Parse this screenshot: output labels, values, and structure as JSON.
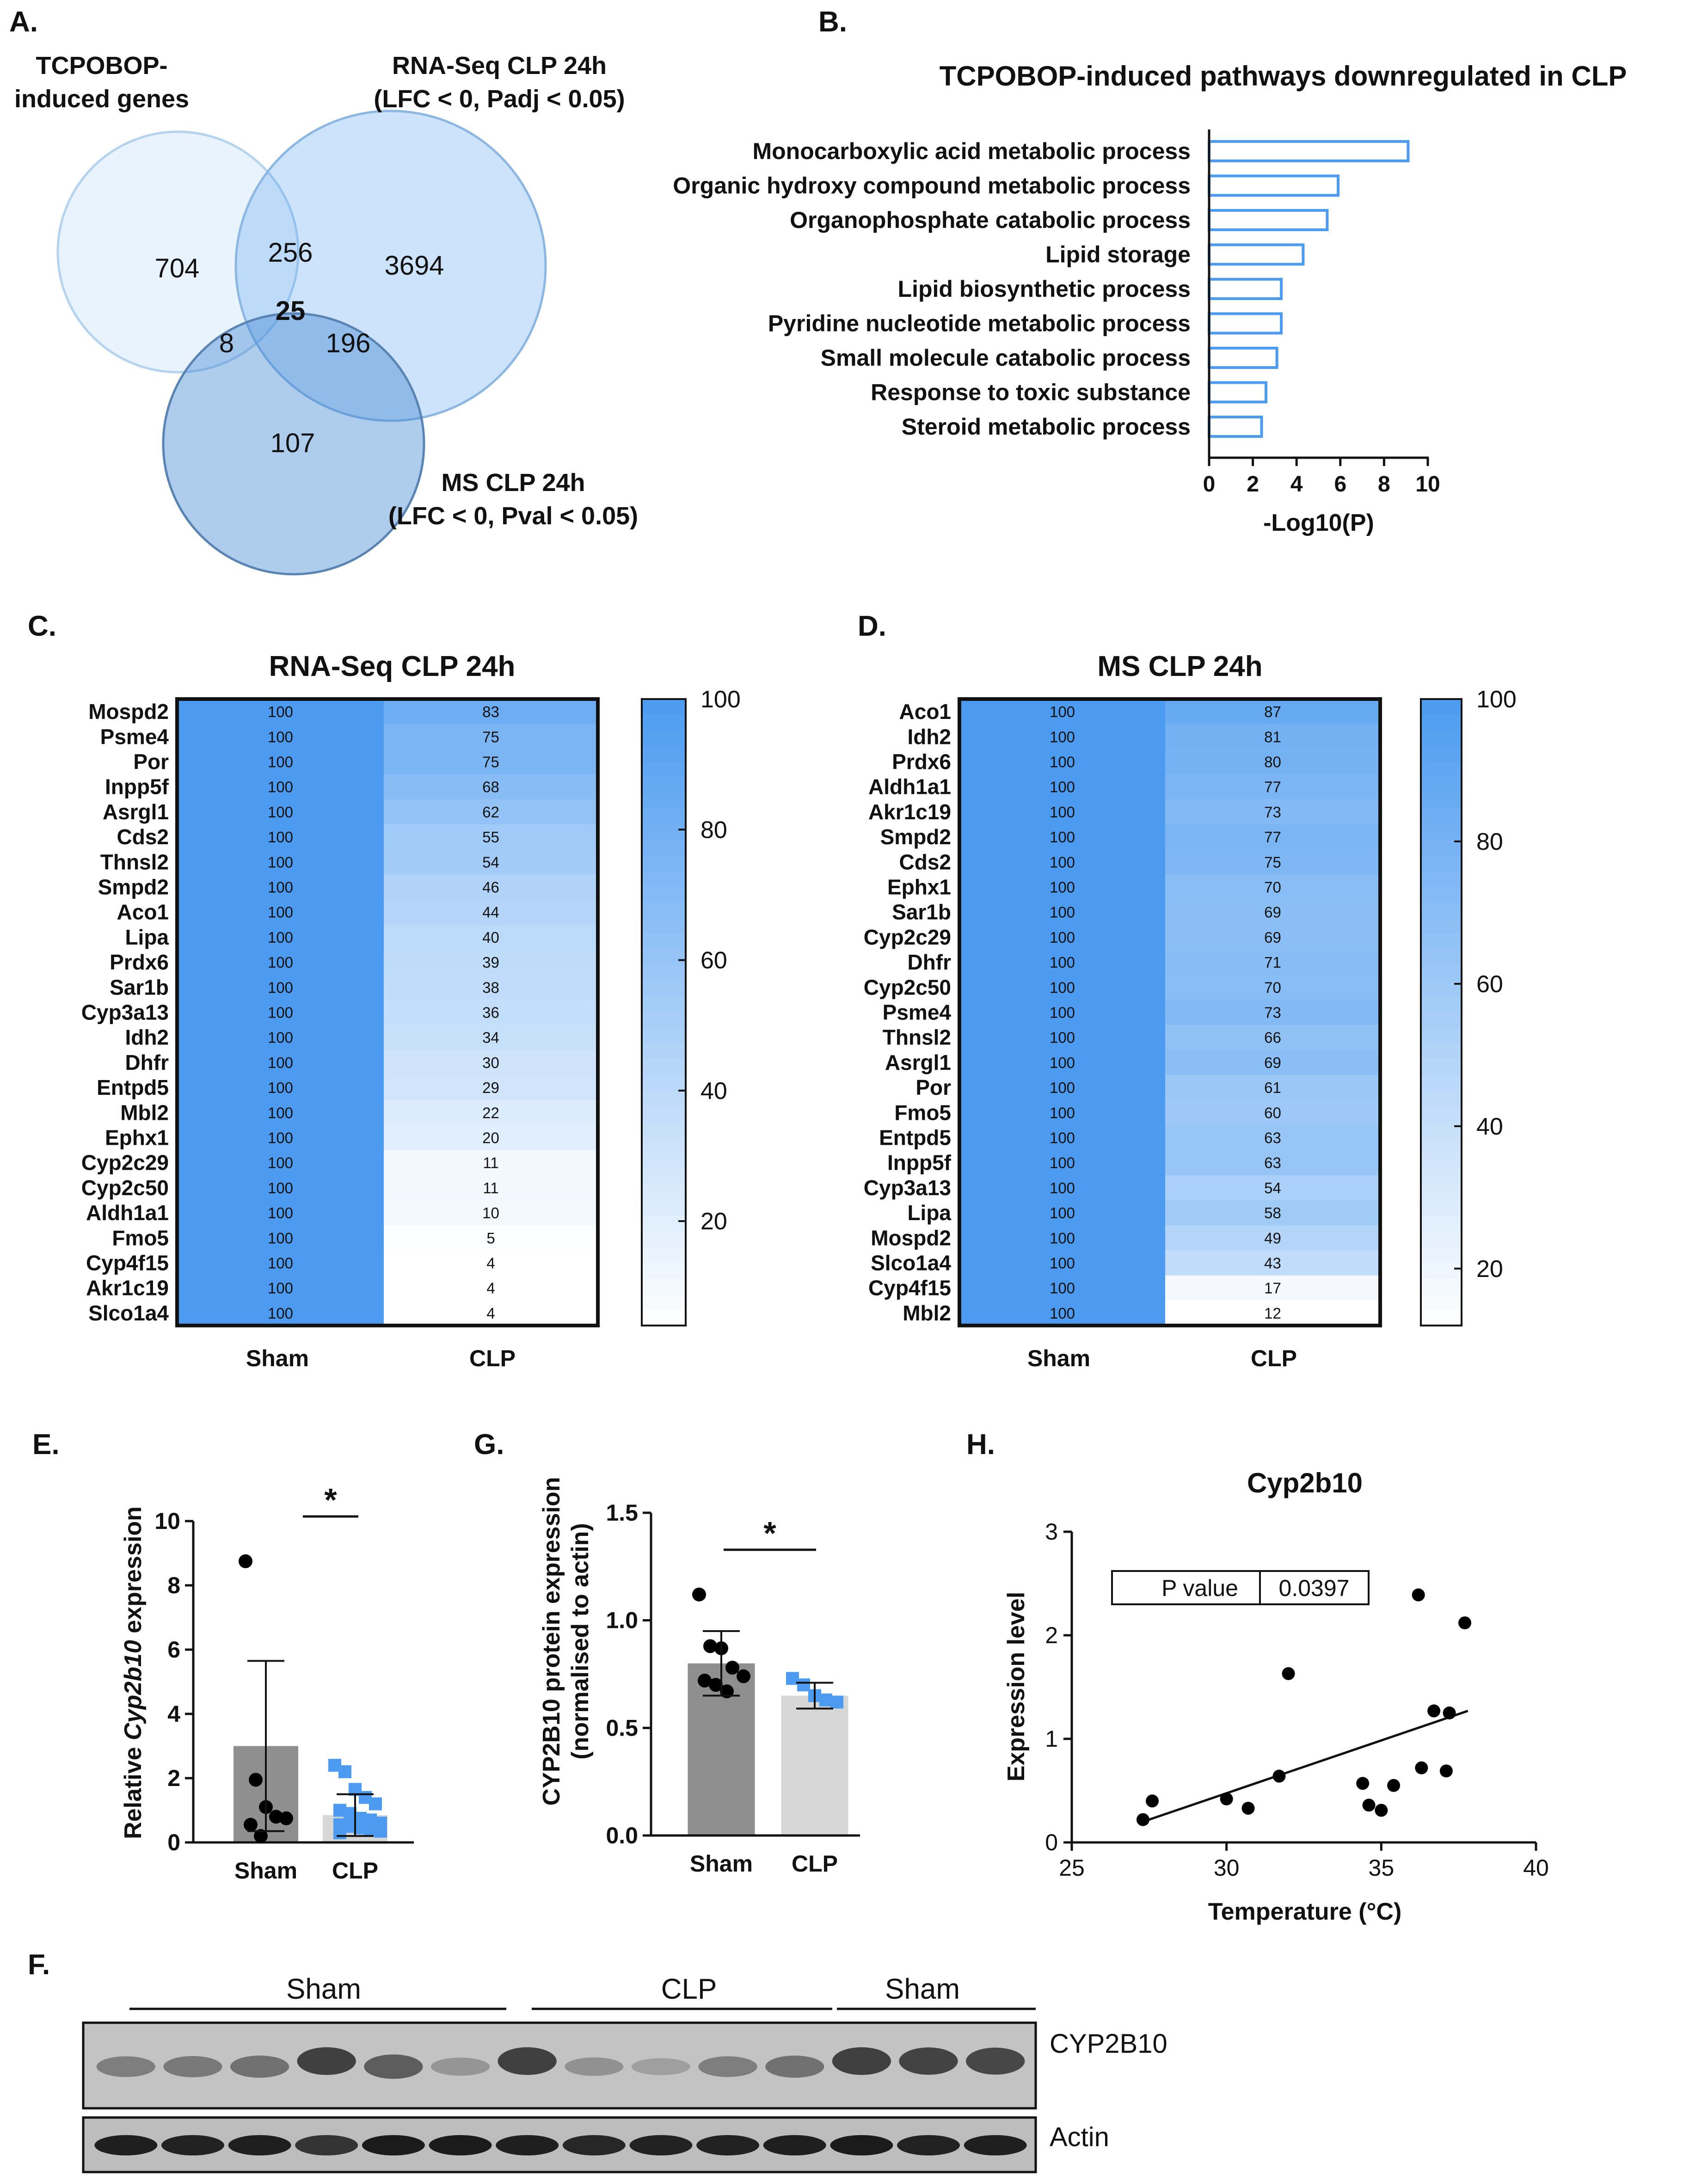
{
  "panel_letters": {
    "a": "A.",
    "b": "B.",
    "c": "C.",
    "d": "D.",
    "e": "E.",
    "g": "G.",
    "h": "H.",
    "f": "F."
  },
  "venn": {
    "set1_label": [
      "TCPOBOP-",
      "induced genes"
    ],
    "set2_label": [
      "RNA-Seq CLP 24h",
      "(LFC < 0, Padj < 0.05)"
    ],
    "set3_label": [
      "MS CLP 24h",
      "(LFC < 0, Pval < 0.05)"
    ],
    "counts": {
      "only1": "704",
      "only2": "3694",
      "only3": "107",
      "s12": "256",
      "s13": "8",
      "s23": "196",
      "all": "25"
    }
  },
  "heatmap_common": {
    "sham_label": "Sham",
    "clp_label": "CLP",
    "color_low": "#ffffff",
    "color_high": "#4c9bf0"
  },
  "chart_data": [
    {
      "id": "B",
      "type": "bar",
      "orientation": "horizontal",
      "title": "TCPOBOP-induced pathways downregulated in CLP",
      "xlabel": "-Log10(P)",
      "xlim": [
        0,
        10
      ],
      "xticks": [
        0,
        2,
        4,
        6,
        8,
        10
      ],
      "categories": [
        "Monocarboxylic acid metabolic process",
        "Organic hydroxy compound metabolic process",
        "Organophosphate catabolic process",
        "Lipid storage",
        "Lipid biosynthetic process",
        "Pyridine nucleotide metabolic process",
        "Small molecule catabolic process",
        "Response to toxic substance",
        "Steroid metabolic process"
      ],
      "values": [
        9.1,
        5.9,
        5.4,
        4.3,
        3.3,
        3.3,
        3.1,
        2.6,
        2.4
      ],
      "color": "#4c9bf0"
    },
    {
      "id": "C",
      "type": "heatmap",
      "title": "RNA-Seq CLP 24h",
      "columns": [
        "Sham",
        "CLP"
      ],
      "rows": [
        "Mospd2",
        "Psme4",
        "Por",
        "Inpp5f",
        "Asrgl1",
        "Cds2",
        "Thnsl2",
        "Smpd2",
        "Aco1",
        "Lipa",
        "Prdx6",
        "Sar1b",
        "Cyp3a13",
        "Idh2",
        "Dhfr",
        "Entpd5",
        "Mbl2",
        "Ephx1",
        "Cyp2c29",
        "Cyp2c50",
        "Aldh1a1",
        "Fmo5",
        "Cyp4f15",
        "Akr1c19",
        "Slco1a4"
      ],
      "sham": [
        100,
        100,
        100,
        100,
        100,
        100,
        100,
        100,
        100,
        100,
        100,
        100,
        100,
        100,
        100,
        100,
        100,
        100,
        100,
        100,
        100,
        100,
        100,
        100,
        100
      ],
      "clp": [
        83,
        75,
        75,
        68,
        62,
        55,
        54,
        46,
        44,
        40,
        39,
        38,
        36,
        34,
        30,
        29,
        22,
        20,
        11,
        11,
        10,
        5,
        4,
        4,
        4
      ],
      "scale_min": 4,
      "scale_max": 100,
      "colorbar_ticks": [
        20,
        40,
        60,
        80,
        100
      ]
    },
    {
      "id": "D",
      "type": "heatmap",
      "title": "MS CLP 24h",
      "columns": [
        "Sham",
        "CLP"
      ],
      "rows": [
        "Aco1",
        "Idh2",
        "Prdx6",
        "Aldh1a1",
        "Akr1c19",
        "Smpd2",
        "Cds2",
        "Ephx1",
        "Sar1b",
        "Cyp2c29",
        "Dhfr",
        "Cyp2c50",
        "Psme4",
        "Thnsl2",
        "Asrgl1",
        "Por",
        "Fmo5",
        "Entpd5",
        "Inpp5f",
        "Cyp3a13",
        "Lipa",
        "Mospd2",
        "Slco1a4",
        "Cyp4f15",
        "Mbl2"
      ],
      "sham": [
        100,
        100,
        100,
        100,
        100,
        100,
        100,
        100,
        100,
        100,
        100,
        100,
        100,
        100,
        100,
        100,
        100,
        100,
        100,
        100,
        100,
        100,
        100,
        100,
        100
      ],
      "clp": [
        87,
        81,
        80,
        77,
        73,
        77,
        75,
        70,
        69,
        69,
        71,
        70,
        73,
        66,
        69,
        61,
        60,
        63,
        63,
        54,
        58,
        49,
        43,
        17,
        12
      ],
      "scale_min": 12,
      "scale_max": 100,
      "colorbar_ticks": [
        20,
        40,
        60,
        80,
        100
      ]
    },
    {
      "id": "E",
      "type": "bar",
      "subtype": "bar-scatter",
      "ylabel_parts": [
        "Relative ",
        "Cyp2b10",
        " expression"
      ],
      "categories": [
        "Sham",
        "CLP"
      ],
      "means": [
        3.0,
        0.85
      ],
      "sd": [
        2.65,
        0.65
      ],
      "ylim": [
        0,
        10
      ],
      "yticks": [
        0,
        2,
        4,
        6,
        8,
        10
      ],
      "significance": "*",
      "points": [
        [
          8.75,
          1.95,
          1.1,
          0.8,
          0.75,
          0.55,
          0.2
        ],
        [
          2.4,
          2.2,
          1.65,
          1.4,
          1.2,
          1.0,
          0.9,
          0.75,
          0.7,
          0.6,
          0.55,
          0.5,
          0.45,
          0.4,
          0.35,
          0.3
        ]
      ],
      "bar_colors": [
        "#8f8f8f",
        "#d7d7d7"
      ],
      "point_colors": [
        "#000000",
        "#4c9bf0"
      ]
    },
    {
      "id": "G",
      "type": "bar",
      "subtype": "bar-scatter",
      "ylabel": [
        "CYP2B10 protein expression",
        "(normalised to actin)"
      ],
      "categories": [
        "Sham",
        "CLP"
      ],
      "means": [
        0.8,
        0.65
      ],
      "sd": [
        0.15,
        0.06
      ],
      "ylim": [
        0,
        1.5
      ],
      "yticks": [
        "0.0",
        "0.5",
        "1.0",
        "1.5"
      ],
      "significance": "*",
      "points": [
        [
          1.12,
          0.88,
          0.87,
          0.78,
          0.74,
          0.72,
          0.7,
          0.67
        ],
        [
          0.73,
          0.7,
          0.65,
          0.63,
          0.62
        ]
      ],
      "bar_colors": [
        "#8f8f8f",
        "#d7d7d7"
      ],
      "point_colors": [
        "#000000",
        "#4c9bf0"
      ]
    },
    {
      "id": "H",
      "type": "scatter",
      "title": "Cyp2b10",
      "xlabel": "Temperature (°C)",
      "ylabel": "Expression level",
      "xlim": [
        25,
        40
      ],
      "ylim": [
        0,
        3
      ],
      "xticks": [
        25,
        30,
        35,
        40
      ],
      "yticks": [
        0,
        1,
        2,
        3
      ],
      "p_label": "P value",
      "p_value": "0.0397",
      "x": [
        27.3,
        27.6,
        30.0,
        30.7,
        31.7,
        32.0,
        34.4,
        34.6,
        35.0,
        35.4,
        36.2,
        36.3,
        36.7,
        37.1,
        37.2,
        37.7
      ],
      "y": [
        0.22,
        0.4,
        0.42,
        0.33,
        0.64,
        1.63,
        0.57,
        0.36,
        0.31,
        0.55,
        2.39,
        0.72,
        1.27,
        0.69,
        1.25,
        2.12
      ],
      "fit": [
        [
          27.3,
          0.2
        ],
        [
          37.8,
          1.27
        ]
      ]
    }
  ],
  "western": {
    "group_labels": [
      "Sham",
      "CLP",
      "Sham"
    ],
    "band_labels": [
      "CYP2B10",
      "Actin"
    ],
    "cyp_intensities": [
      0.42,
      0.45,
      0.5,
      0.8,
      0.62,
      0.28,
      0.8,
      0.3,
      0.22,
      0.42,
      0.5,
      0.8,
      0.78,
      0.76
    ],
    "actin_intensities": [
      0.9,
      0.88,
      0.9,
      0.78,
      0.92,
      0.92,
      0.9,
      0.85,
      0.88,
      0.88,
      0.9,
      0.92,
      0.88,
      0.9
    ]
  }
}
